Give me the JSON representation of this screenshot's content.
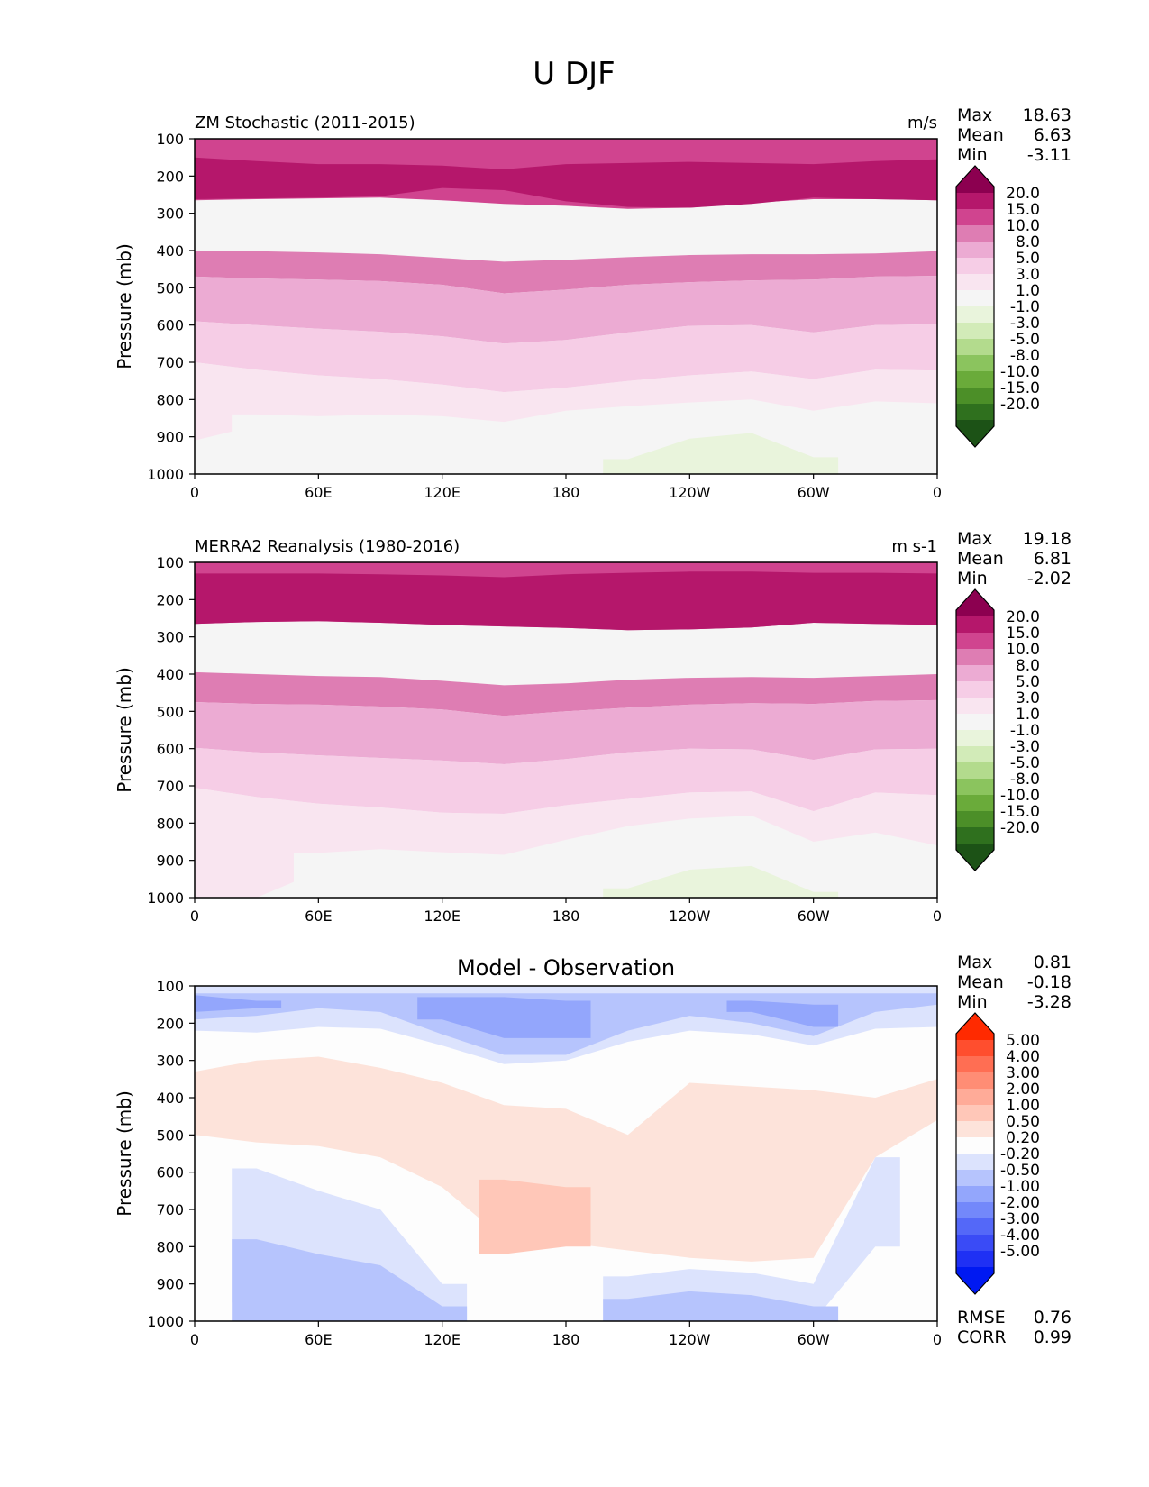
{
  "figure": {
    "title": "U DJF"
  },
  "chart_data": [
    {
      "type": "heatmap",
      "title": "ZM Stochastic (2011-2015)",
      "units": "m/s",
      "ylabel": "Pressure (mb)",
      "xlabel": "",
      "xticks": [
        "0",
        "60E",
        "120E",
        "180",
        "120W",
        "60W",
        "0"
      ],
      "yticks": [
        "100",
        "200",
        "300",
        "400",
        "500",
        "600",
        "700",
        "800",
        "900",
        "1000"
      ],
      "xlim": [
        0,
        360
      ],
      "ylim": [
        1000,
        100
      ],
      "stats": [
        {
          "label": "Max",
          "value": "18.63"
        },
        {
          "label": "Mean",
          "value": "6.63"
        },
        {
          "label": "Min",
          "value": "-3.11"
        }
      ],
      "levels": [
        "20.0",
        "15.0",
        "10.0",
        "8.0",
        "5.0",
        "3.0",
        "1.0",
        "-1.0",
        "-3.0",
        "-5.0",
        "-8.0",
        "-10.0",
        "-15.0",
        "-20.0"
      ],
      "colorbar": [
        "#8c0050",
        "#b5176b",
        "#d0448f",
        "#de7db3",
        "#ecabd3",
        "#f6cde6",
        "#f9e5f0",
        "#f5f5f5",
        "#e9f4dc",
        "#d2ebb8",
        "#b3db8d",
        "#8bc45e",
        "#6aab3a",
        "#4c8f28",
        "#2f701e",
        "#1c5216"
      ],
      "bands": [
        {
          "color": "#d0448f",
          "top": [
            100,
            100,
            100,
            100,
            100,
            100,
            100,
            100,
            100,
            100,
            100,
            100,
            100
          ],
          "bottom": [
            265,
            262,
            260,
            258,
            265,
            275,
            280,
            288,
            285,
            272,
            262,
            262,
            265
          ]
        },
        {
          "color": "#b5176b",
          "top": [
            150,
            160,
            168,
            168,
            172,
            182,
            168,
            165,
            162,
            165,
            168,
            160,
            155
          ],
          "bottom": [
            262,
            260,
            258,
            254,
            232,
            238,
            268,
            283,
            285,
            275,
            258,
            262,
            265
          ]
        },
        {
          "color": "#de7db3",
          "top": [
            400,
            402,
            405,
            410,
            420,
            430,
            425,
            418,
            412,
            410,
            410,
            408,
            402
          ],
          "bottom": [
            470,
            475,
            478,
            482,
            492,
            515,
            505,
            492,
            485,
            480,
            478,
            470,
            468
          ]
        },
        {
          "color": "#ecabd3",
          "top": [
            470,
            475,
            478,
            482,
            492,
            515,
            505,
            492,
            485,
            480,
            478,
            470,
            468
          ],
          "bottom": [
            590,
            600,
            610,
            618,
            630,
            650,
            640,
            620,
            602,
            600,
            620,
            600,
            598
          ]
        },
        {
          "color": "#f6cde6",
          "top": [
            590,
            600,
            610,
            618,
            630,
            650,
            640,
            620,
            602,
            600,
            620,
            600,
            598
          ],
          "bottom": [
            700,
            720,
            735,
            745,
            760,
            780,
            768,
            750,
            735,
            725,
            745,
            720,
            722
          ]
        },
        {
          "color": "#f9e5f0",
          "top": [
            700,
            720,
            735,
            745,
            760,
            780,
            768,
            750,
            735,
            725,
            745,
            720,
            722
          ],
          "bottom": [
            910,
            870,
            855,
            850,
            862,
            885,
            848,
            838,
            825,
            815,
            860,
            820,
            860
          ]
        },
        {
          "color": "#f5f5f5",
          "top": [
            1000,
            840,
            845,
            840,
            845,
            860,
            830,
            818,
            808,
            800,
            830,
            805,
            810
          ],
          "bottom": [
            1000,
            1000,
            1000,
            1000,
            1000,
            1000,
            1000,
            1000,
            1000,
            1000,
            1000,
            1000,
            1000
          ]
        },
        {
          "color": "#e9f4dc",
          "top": [
            1000,
            1000,
            1000,
            1000,
            1000,
            1000,
            1000,
            960,
            905,
            890,
            955,
            1000,
            1000
          ],
          "bottom": [
            1000,
            1000,
            1000,
            1000,
            1000,
            1000,
            1000,
            1000,
            1000,
            1000,
            1000,
            1000,
            1000
          ]
        }
      ]
    },
    {
      "type": "heatmap",
      "title": "MERRA2 Reanalysis (1980-2016)",
      "units": "m s-1",
      "ylabel": "Pressure (mb)",
      "xlabel": "",
      "xticks": [
        "0",
        "60E",
        "120E",
        "180",
        "120W",
        "60W",
        "0"
      ],
      "yticks": [
        "100",
        "200",
        "300",
        "400",
        "500",
        "600",
        "700",
        "800",
        "900",
        "1000"
      ],
      "xlim": [
        0,
        360
      ],
      "ylim": [
        1000,
        100
      ],
      "stats": [
        {
          "label": "Max",
          "value": "19.18"
        },
        {
          "label": "Mean",
          "value": "6.81"
        },
        {
          "label": "Min",
          "value": "-2.02"
        }
      ],
      "levels": [
        "20.0",
        "15.0",
        "10.0",
        "8.0",
        "5.0",
        "3.0",
        "1.0",
        "-1.0",
        "-3.0",
        "-5.0",
        "-8.0",
        "-10.0",
        "-15.0",
        "-20.0"
      ],
      "colorbar": [
        "#8c0050",
        "#b5176b",
        "#d0448f",
        "#de7db3",
        "#ecabd3",
        "#f6cde6",
        "#f9e5f0",
        "#f5f5f5",
        "#e9f4dc",
        "#d2ebb8",
        "#b3db8d",
        "#8bc45e",
        "#6aab3a",
        "#4c8f28",
        "#2f701e",
        "#1c5216"
      ],
      "bands": [
        {
          "color": "#d0448f",
          "top": [
            100,
            100,
            100,
            100,
            100,
            100,
            100,
            100,
            100,
            100,
            100,
            100,
            100
          ],
          "bottom": [
            265,
            260,
            258,
            262,
            268,
            272,
            276,
            282,
            280,
            275,
            262,
            265,
            268
          ]
        },
        {
          "color": "#b5176b",
          "top": [
            130,
            130,
            130,
            132,
            135,
            140,
            132,
            128,
            125,
            125,
            128,
            128,
            130
          ],
          "bottom": [
            265,
            260,
            258,
            262,
            268,
            272,
            276,
            282,
            280,
            275,
            262,
            265,
            268
          ]
        },
        {
          "color": "#de7db3",
          "top": [
            395,
            400,
            405,
            408,
            418,
            430,
            425,
            415,
            410,
            408,
            410,
            405,
            400
          ],
          "bottom": [
            475,
            480,
            482,
            487,
            495,
            512,
            500,
            490,
            482,
            478,
            480,
            472,
            470
          ]
        },
        {
          "color": "#ecabd3",
          "top": [
            475,
            480,
            482,
            487,
            495,
            512,
            500,
            490,
            482,
            478,
            480,
            472,
            470
          ],
          "bottom": [
            598,
            610,
            618,
            625,
            632,
            642,
            628,
            610,
            600,
            602,
            630,
            602,
            600
          ]
        },
        {
          "color": "#f6cde6",
          "top": [
            598,
            610,
            618,
            625,
            632,
            642,
            628,
            610,
            600,
            602,
            630,
            602,
            600
          ],
          "bottom": [
            705,
            730,
            748,
            758,
            772,
            775,
            752,
            735,
            718,
            715,
            768,
            718,
            725
          ]
        },
        {
          "color": "#f9e5f0",
          "top": [
            705,
            730,
            748,
            758,
            772,
            775,
            752,
            735,
            718,
            715,
            768,
            718,
            725
          ],
          "bottom": [
            1000,
            1000,
            930,
            890,
            895,
            905,
            880,
            860,
            838,
            835,
            890,
            850,
            905
          ]
        },
        {
          "color": "#f5f5f5",
          "top": [
            1000,
            1000,
            880,
            870,
            878,
            885,
            845,
            808,
            788,
            780,
            850,
            825,
            860
          ],
          "bottom": [
            1000,
            1000,
            1000,
            1000,
            1000,
            1000,
            1000,
            1000,
            1000,
            1000,
            1000,
            1000,
            1000
          ]
        },
        {
          "color": "#e9f4dc",
          "top": [
            1000,
            1000,
            1000,
            1000,
            1000,
            1000,
            1000,
            975,
            925,
            915,
            985,
            1000,
            1000
          ],
          "bottom": [
            1000,
            1000,
            1000,
            1000,
            1000,
            1000,
            1000,
            1000,
            1000,
            1000,
            1000,
            1000,
            1000
          ]
        }
      ]
    },
    {
      "type": "heatmap",
      "title": "Model - Observation",
      "units": "",
      "ylabel": "Pressure (mb)",
      "xlabel": "",
      "xticks": [
        "0",
        "60E",
        "120E",
        "180",
        "120W",
        "60W",
        "0"
      ],
      "yticks": [
        "100",
        "200",
        "300",
        "400",
        "500",
        "600",
        "700",
        "800",
        "900",
        "1000"
      ],
      "xlim": [
        0,
        360
      ],
      "ylim": [
        1000,
        100
      ],
      "stats": [
        {
          "label": "Max",
          "value": "0.81"
        },
        {
          "label": "Mean",
          "value": "-0.18"
        },
        {
          "label": "Min",
          "value": "-3.28"
        }
      ],
      "metrics": [
        {
          "label": "RMSE",
          "value": "0.76"
        },
        {
          "label": "CORR",
          "value": "0.99"
        }
      ],
      "levels": [
        "5.00",
        "4.00",
        "3.00",
        "2.00",
        "1.00",
        "0.50",
        "0.20",
        "-0.20",
        "-0.50",
        "-1.00",
        "-2.00",
        "-3.00",
        "-4.00",
        "-5.00"
      ],
      "colorbar": [
        "#ff2a00",
        "#ff4e2e",
        "#ff6e53",
        "#ff8d75",
        "#ffab98",
        "#ffc7b8",
        "#fde3da",
        "#fdfdfd",
        "#dce3fd",
        "#b6c4fd",
        "#93a6fc",
        "#7388fa",
        "#5468f8",
        "#3a4bf6",
        "#1f30f4",
        "#0019f2"
      ],
      "bands": [
        {
          "color": "#dce3fd",
          "top": [
            100,
            100,
            100,
            100,
            100,
            100,
            100,
            100,
            100,
            100,
            100,
            100,
            100
          ],
          "bottom": [
            220,
            225,
            210,
            215,
            260,
            310,
            300,
            250,
            220,
            230,
            260,
            215,
            210
          ]
        },
        {
          "color": "#b6c4fd",
          "top": [
            120,
            120,
            120,
            120,
            120,
            120,
            120,
            120,
            120,
            120,
            120,
            120,
            120
          ],
          "bottom": [
            190,
            180,
            160,
            170,
            230,
            285,
            285,
            220,
            180,
            200,
            235,
            170,
            150
          ]
        },
        {
          "color": "#93a6fc",
          "top": [
            125,
            140,
            0,
            0,
            130,
            130,
            140,
            0,
            0,
            140,
            150,
            0,
            0
          ],
          "bottom": [
            170,
            160,
            0,
            0,
            190,
            240,
            240,
            0,
            0,
            170,
            210,
            0,
            0
          ]
        },
        {
          "color": "#fde3da",
          "top": [
            330,
            300,
            290,
            320,
            360,
            420,
            430,
            500,
            360,
            370,
            380,
            400,
            350
          ],
          "bottom": [
            500,
            520,
            530,
            560,
            640,
            780,
            790,
            810,
            830,
            840,
            830,
            560,
            460
          ]
        },
        {
          "color": "#ffc7b8",
          "top": [
            0,
            0,
            0,
            0,
            0,
            620,
            640,
            0,
            0,
            0,
            0,
            0,
            0
          ],
          "bottom": [
            0,
            0,
            0,
            0,
            0,
            820,
            800,
            0,
            0,
            0,
            0,
            0,
            0
          ]
        },
        {
          "color": "#dce3fd",
          "top": [
            1000,
            590,
            650,
            700,
            900,
            1000,
            1000,
            880,
            860,
            870,
            900,
            560,
            1000
          ],
          "bottom": [
            1000,
            950,
            1000,
            1000,
            1000,
            1000,
            1000,
            1000,
            1000,
            1000,
            1000,
            800,
            1000
          ]
        },
        {
          "color": "#b6c4fd",
          "top": [
            1000,
            780,
            820,
            850,
            960,
            1000,
            1000,
            940,
            920,
            930,
            960,
            1000,
            1000
          ],
          "bottom": [
            1000,
            1000,
            1000,
            1000,
            1000,
            1000,
            1000,
            1000,
            1000,
            1000,
            1000,
            1000,
            1000
          ]
        }
      ]
    }
  ]
}
